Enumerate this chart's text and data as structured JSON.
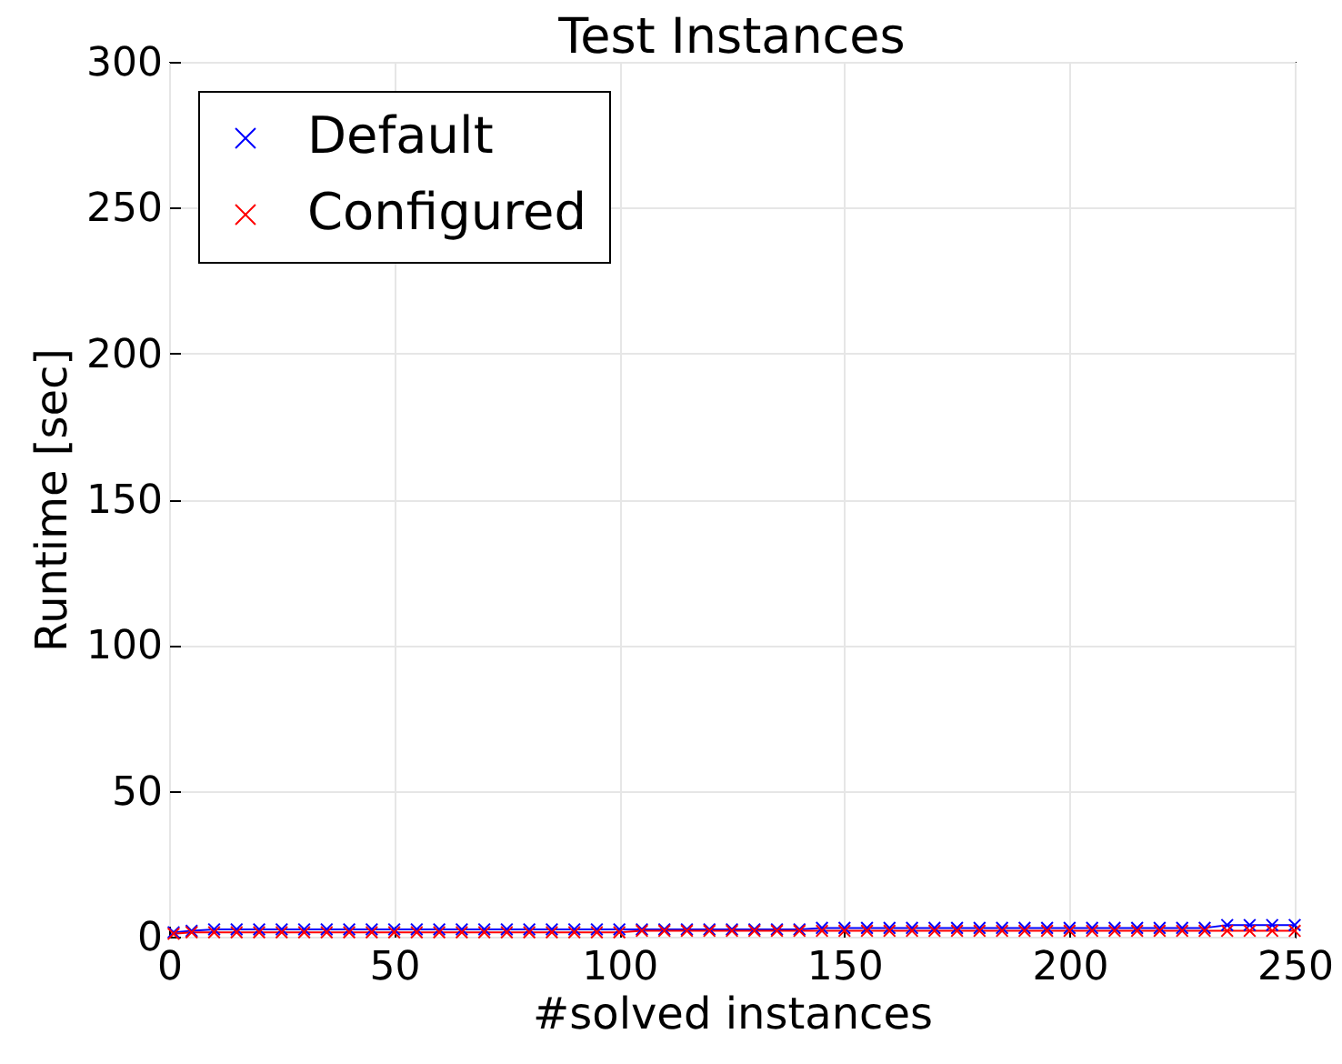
{
  "chart_data": {
    "type": "line",
    "title": "Test Instances",
    "xlabel": "#solved instances",
    "ylabel": "Runtime [sec]",
    "x": [
      1,
      5,
      10,
      15,
      20,
      25,
      30,
      35,
      40,
      45,
      50,
      55,
      60,
      65,
      70,
      75,
      80,
      85,
      90,
      95,
      100,
      105,
      110,
      115,
      120,
      125,
      130,
      135,
      140,
      145,
      150,
      155,
      160,
      165,
      170,
      175,
      180,
      185,
      190,
      195,
      200,
      205,
      210,
      215,
      220,
      225,
      230,
      235,
      240,
      245,
      250
    ],
    "series": [
      {
        "name": "Default",
        "color": "#0000ff",
        "values": [
          1.5,
          2,
          2.5,
          2.5,
          2.5,
          2.5,
          2.5,
          2.5,
          2.5,
          2.5,
          2.5,
          2.5,
          2.5,
          2.5,
          2.5,
          2.5,
          2.5,
          2.5,
          2.5,
          2.5,
          2.5,
          2.5,
          2.5,
          2.5,
          2.5,
          2.5,
          2.5,
          2.5,
          2.5,
          3,
          3,
          3,
          3,
          3,
          3,
          3,
          3,
          3,
          3,
          3,
          3,
          3,
          3,
          3,
          3,
          3,
          3,
          4,
          4,
          4,
          4
        ]
      },
      {
        "name": "Configured",
        "color": "#ff0000",
        "values": [
          1,
          1.5,
          1.5,
          1.5,
          1.5,
          1.5,
          1.5,
          1.5,
          1.5,
          1.5,
          1.5,
          1.5,
          1.5,
          1.5,
          1.5,
          1.5,
          1.5,
          1.5,
          1.5,
          1.5,
          1.5,
          2,
          2,
          2,
          2,
          2,
          2,
          2,
          2,
          2,
          2,
          2,
          2,
          2,
          2,
          2,
          2,
          2,
          2,
          2,
          2,
          2,
          2,
          2,
          2,
          2,
          2,
          2,
          2,
          2,
          2
        ]
      }
    ],
    "xlim": [
      0,
      250
    ],
    "xticks": [
      0,
      50,
      100,
      150,
      200,
      250
    ],
    "ylim": [
      0,
      300
    ],
    "yticks": [
      0,
      50,
      100,
      150,
      200,
      250,
      300
    ],
    "grid": true,
    "legend": "top left",
    "marker": "cross",
    "line_style": "solid"
  }
}
